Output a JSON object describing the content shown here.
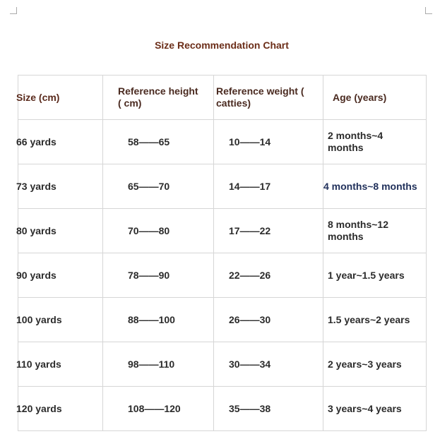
{
  "title": "Size Recommendation Chart",
  "table": {
    "header": [
      "Size (cm)",
      "Reference height ( cm)",
      "Reference weight ( catties)",
      "Age (years)"
    ],
    "rows": [
      [
        "66 yards",
        "58——65",
        "10——14",
        "2 months~4 months"
      ],
      [
        "73 yards",
        "65——70",
        "14——17",
        "4 months~8 months"
      ],
      [
        "80 yards",
        "70——80",
        "17——22",
        "8 months~12 months"
      ],
      [
        "90 yards",
        "78——90",
        "22——26",
        "1 year~1.5 years"
      ],
      [
        "100 yards",
        "88——100",
        "26——30",
        "1.5 years~2 years"
      ],
      [
        "110 yards",
        "98——110",
        "30——34",
        "2 years~3 years"
      ],
      [
        "120 yards",
        "108——120",
        "35——38",
        "3 years~4 years"
      ]
    ]
  }
}
